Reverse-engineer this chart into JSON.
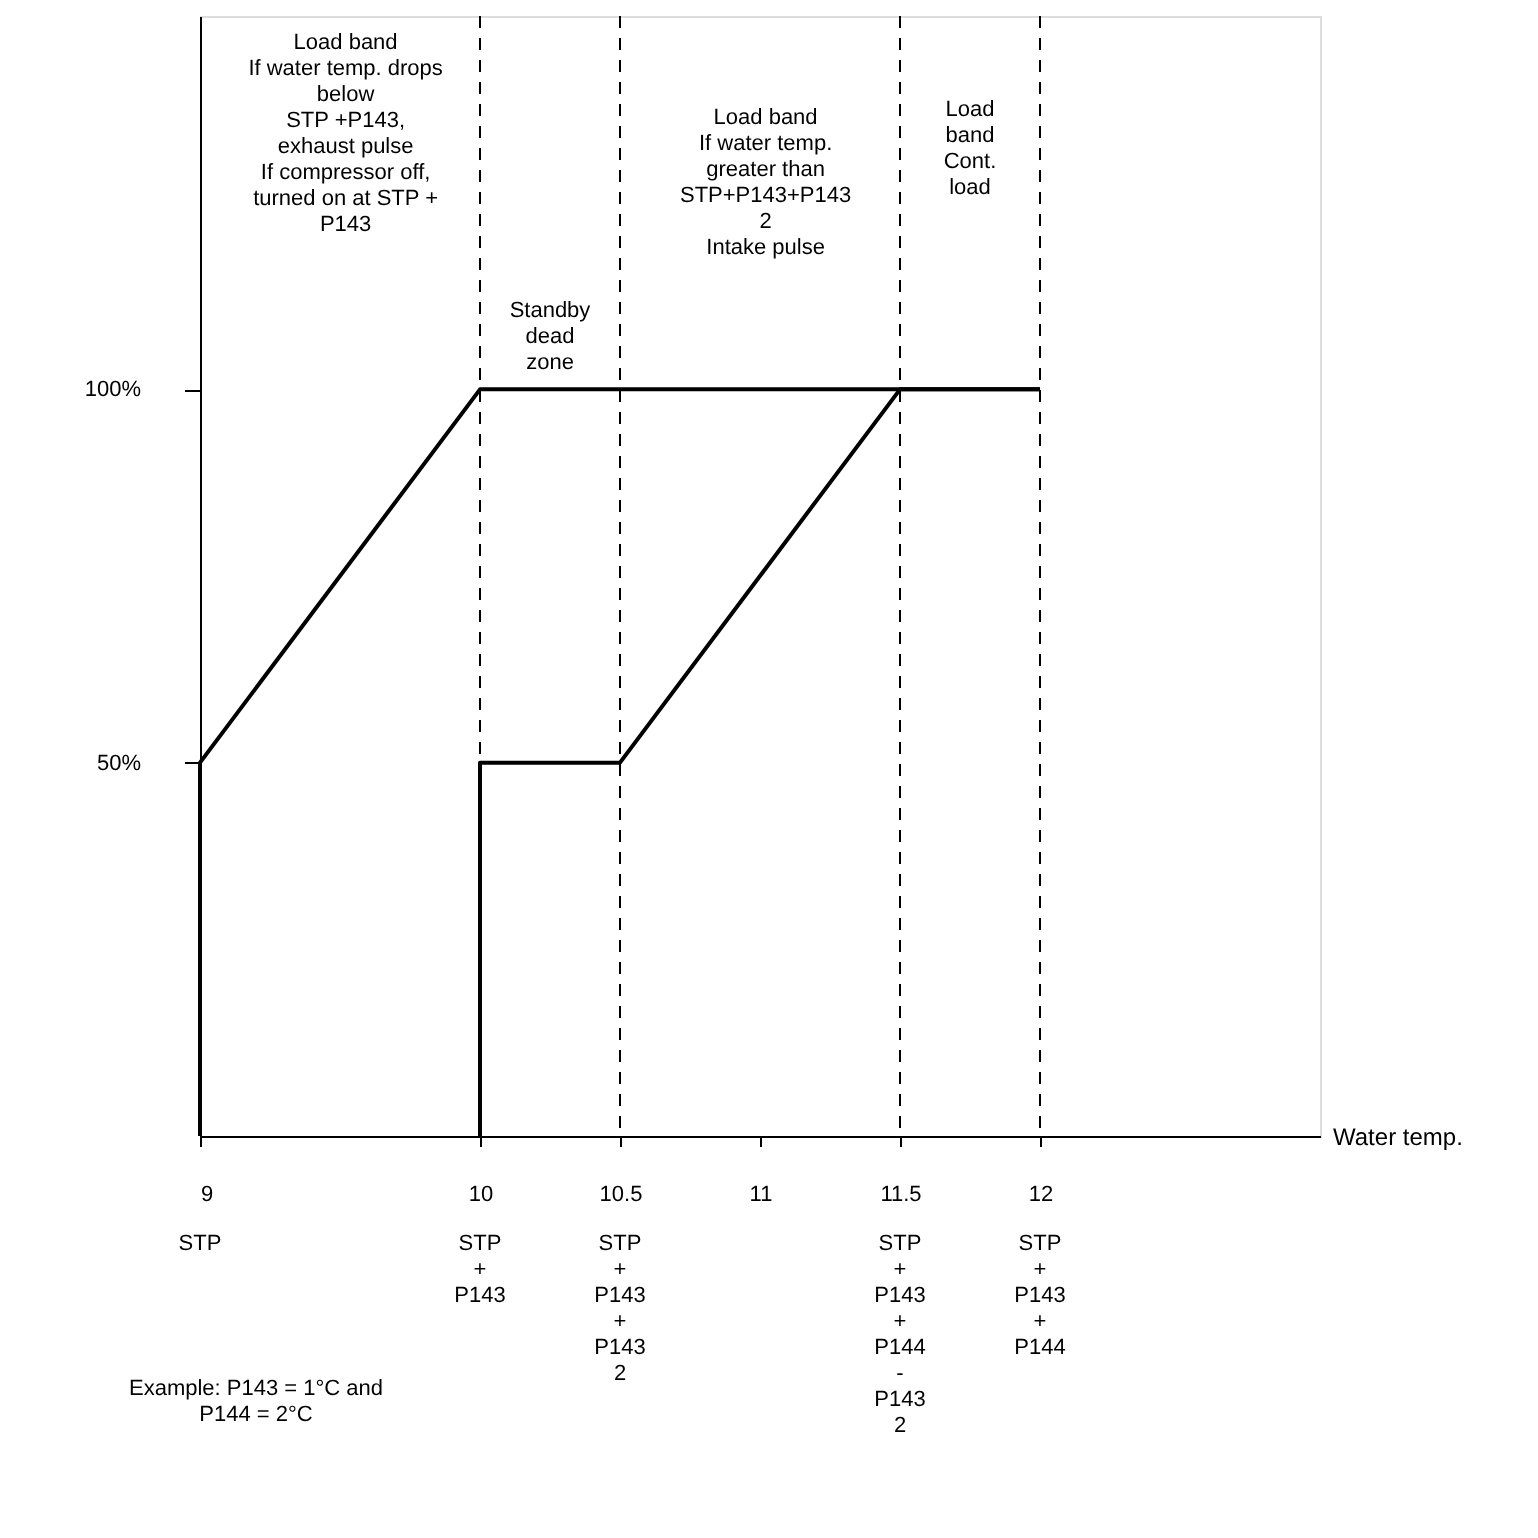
{
  "chart_data": {
    "type": "line",
    "xlabel": "Water temp.",
    "xlim": [
      9,
      13
    ],
    "ylim": [
      0,
      150
    ],
    "xticks": [
      9,
      10,
      10.5,
      11,
      11.5,
      12
    ],
    "yticks": [
      {
        "value": 50,
        "label": "50%"
      },
      {
        "value": 100,
        "label": "100%"
      }
    ],
    "grid": false,
    "series": [
      {
        "color": "#000000",
        "x": [
          12,
          10,
          9,
          9
        ],
        "values": [
          100,
          100,
          50,
          0
        ]
      },
      {
        "color": "#000000",
        "x": [
          10,
          10,
          10.5,
          11.5,
          12
        ],
        "values": [
          0,
          50,
          50,
          100,
          100
        ]
      }
    ],
    "ref_lines": [
      {
        "axis": "x",
        "value": 10,
        "line_style": "dashed",
        "color": "#000000"
      },
      {
        "axis": "x",
        "value": 10.5,
        "line_style": "dashed",
        "color": "#000000"
      },
      {
        "axis": "x",
        "value": 11.5,
        "line_style": "dashed",
        "color": "#000000"
      },
      {
        "axis": "x",
        "value": 12,
        "line_style": "dashed",
        "color": "#000000"
      }
    ],
    "annotations": [
      "Load band\nIf water temp. drops\nbelow\nSTP +P143,\nexhaust pulse\nIf compressor off,\nturned on at STP +\nP143",
      "Standby\ndead\nzone",
      "Load band\nIf water temp.\ngreater than\nSTP+P143+P143\n2\nIntake pulse",
      "Load\nband\nCont.\nload",
      "STP",
      "STP\n+\nP143",
      "STP\n+\nP143\n+\nP143\n2",
      "STP\n+\nP143\n+\nP144\n-\nP143\n2",
      "STP\n+\nP143\n+\nP144",
      "Example: P143 = 1°C and\nP144 = 2°C"
    ]
  }
}
